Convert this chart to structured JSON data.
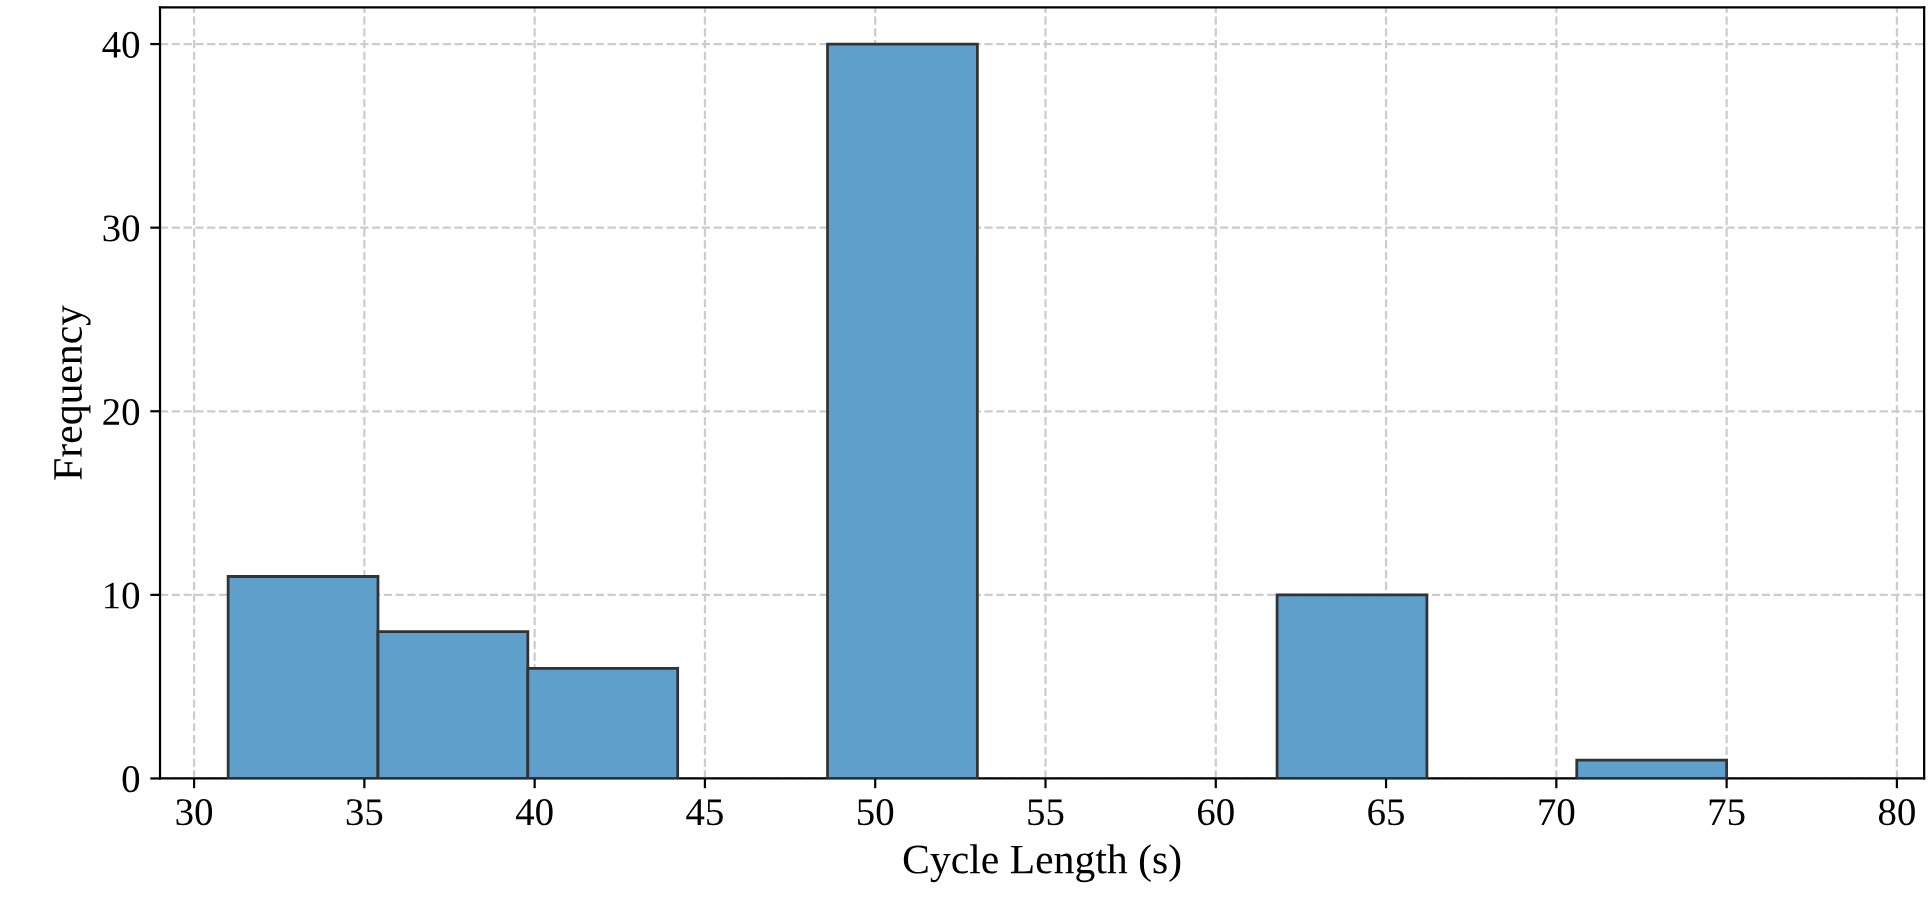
{
  "chart_data": {
    "type": "histogram",
    "xlabel": "Cycle Length (s)",
    "ylabel": "Frequency",
    "bins": [
      31,
      35.4,
      39.8,
      44.2,
      48.6,
      53,
      57.4,
      61.8,
      66.2,
      70.6,
      75
    ],
    "values": [
      11,
      8,
      6,
      0,
      40,
      0,
      0,
      10,
      0,
      1
    ],
    "color": "#5f9fcc",
    "xlim": [
      29,
      80.8
    ],
    "xticks": [
      30,
      35,
      40,
      45,
      50,
      55,
      60,
      65,
      70,
      75,
      80
    ],
    "ylim": [
      0,
      42
    ],
    "yticks": [
      0,
      10,
      20,
      30,
      40
    ],
    "grid": true
  }
}
